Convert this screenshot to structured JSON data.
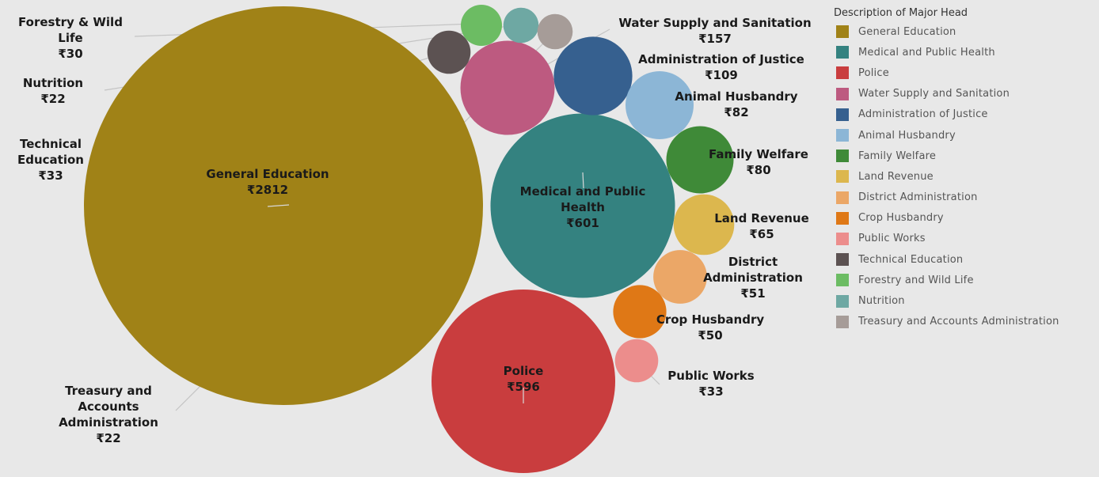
{
  "chart_data": {
    "type": "bubble",
    "currency": "₹",
    "legend_title": "Description  of Major Head",
    "legend_position": "right",
    "items": [
      {
        "name": "General Education",
        "label_lines": [
          "General Education"
        ],
        "value": 2812,
        "color": "#a08217"
      },
      {
        "name": "Medical and Public Health",
        "label_lines": [
          "Medical and Public",
          "Health"
        ],
        "value": 601,
        "color": "#348280"
      },
      {
        "name": "Police",
        "label_lines": [
          "Police"
        ],
        "value": 596,
        "color": "#c93d3e"
      },
      {
        "name": "Water Supply and Sanitation",
        "label_lines": [
          "Water Supply and Sanitation"
        ],
        "value": 157,
        "color": "#bd5a80"
      },
      {
        "name": "Administration of Justice",
        "label_lines": [
          "Administration of Justice"
        ],
        "value": 109,
        "color": "#36608f"
      },
      {
        "name": "Animal Husbandry",
        "label_lines": [
          "Animal Husbandry"
        ],
        "value": 82,
        "color": "#8cb6d6"
      },
      {
        "name": "Family Welfare",
        "label_lines": [
          "Family Welfare"
        ],
        "value": 80,
        "color": "#3f8a38"
      },
      {
        "name": "Land Revenue",
        "label_lines": [
          "Land Revenue"
        ],
        "value": 65,
        "color": "#dcb74e"
      },
      {
        "name": "District Administration",
        "label_lines": [
          "District",
          "Administration"
        ],
        "value": 51,
        "color": "#eba767"
      },
      {
        "name": "Crop Husbandry",
        "label_lines": [
          "Crop Husbandry"
        ],
        "value": 50,
        "color": "#df7816"
      },
      {
        "name": "Public Works",
        "label_lines": [
          "Public Works"
        ],
        "value": 33,
        "color": "#ec8d8c"
      },
      {
        "name": "Technical Education",
        "label_lines": [
          "Technical",
          "Education"
        ],
        "value": 33,
        "color": "#5c5252"
      },
      {
        "name": "Forestry and Wild Life",
        "label_lines": [
          "Forestry & Wild",
          "Life"
        ],
        "value": 30,
        "color": "#6cbc63"
      },
      {
        "name": "Nutrition",
        "label_lines": [
          "Nutrition"
        ],
        "value": 22,
        "color": "#6ea8a3"
      },
      {
        "name": "Treasury and Accounts Administration",
        "label_lines": [
          "Treasury and",
          "Accounts",
          "Administration"
        ],
        "value": 22,
        "color": "#a69c98"
      }
    ]
  }
}
